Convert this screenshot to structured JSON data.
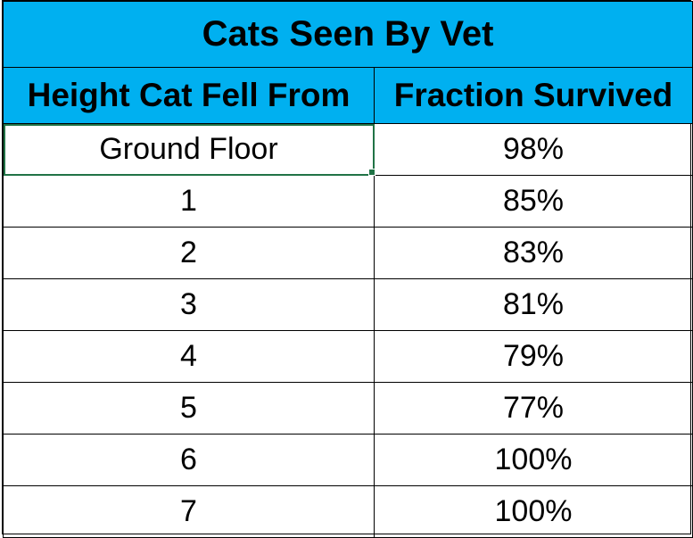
{
  "chart_data": {
    "type": "table",
    "title": "Cats Seen By Vet",
    "columns": [
      "Height Cat Fell From",
      "Fraction Survived"
    ],
    "rows": [
      {
        "height": "Ground Floor",
        "survived": "98%"
      },
      {
        "height": "1",
        "survived": "85%"
      },
      {
        "height": "2",
        "survived": "83%"
      },
      {
        "height": "3",
        "survived": "81%"
      },
      {
        "height": "4",
        "survived": "79%"
      },
      {
        "height": "5",
        "survived": "77%"
      },
      {
        "height": "6",
        "survived": "100%"
      },
      {
        "height": "7",
        "survived": "100%"
      }
    ]
  },
  "colors": {
    "header_fill": "#00b0f0",
    "grid": "#000000",
    "selection": "#217346"
  }
}
